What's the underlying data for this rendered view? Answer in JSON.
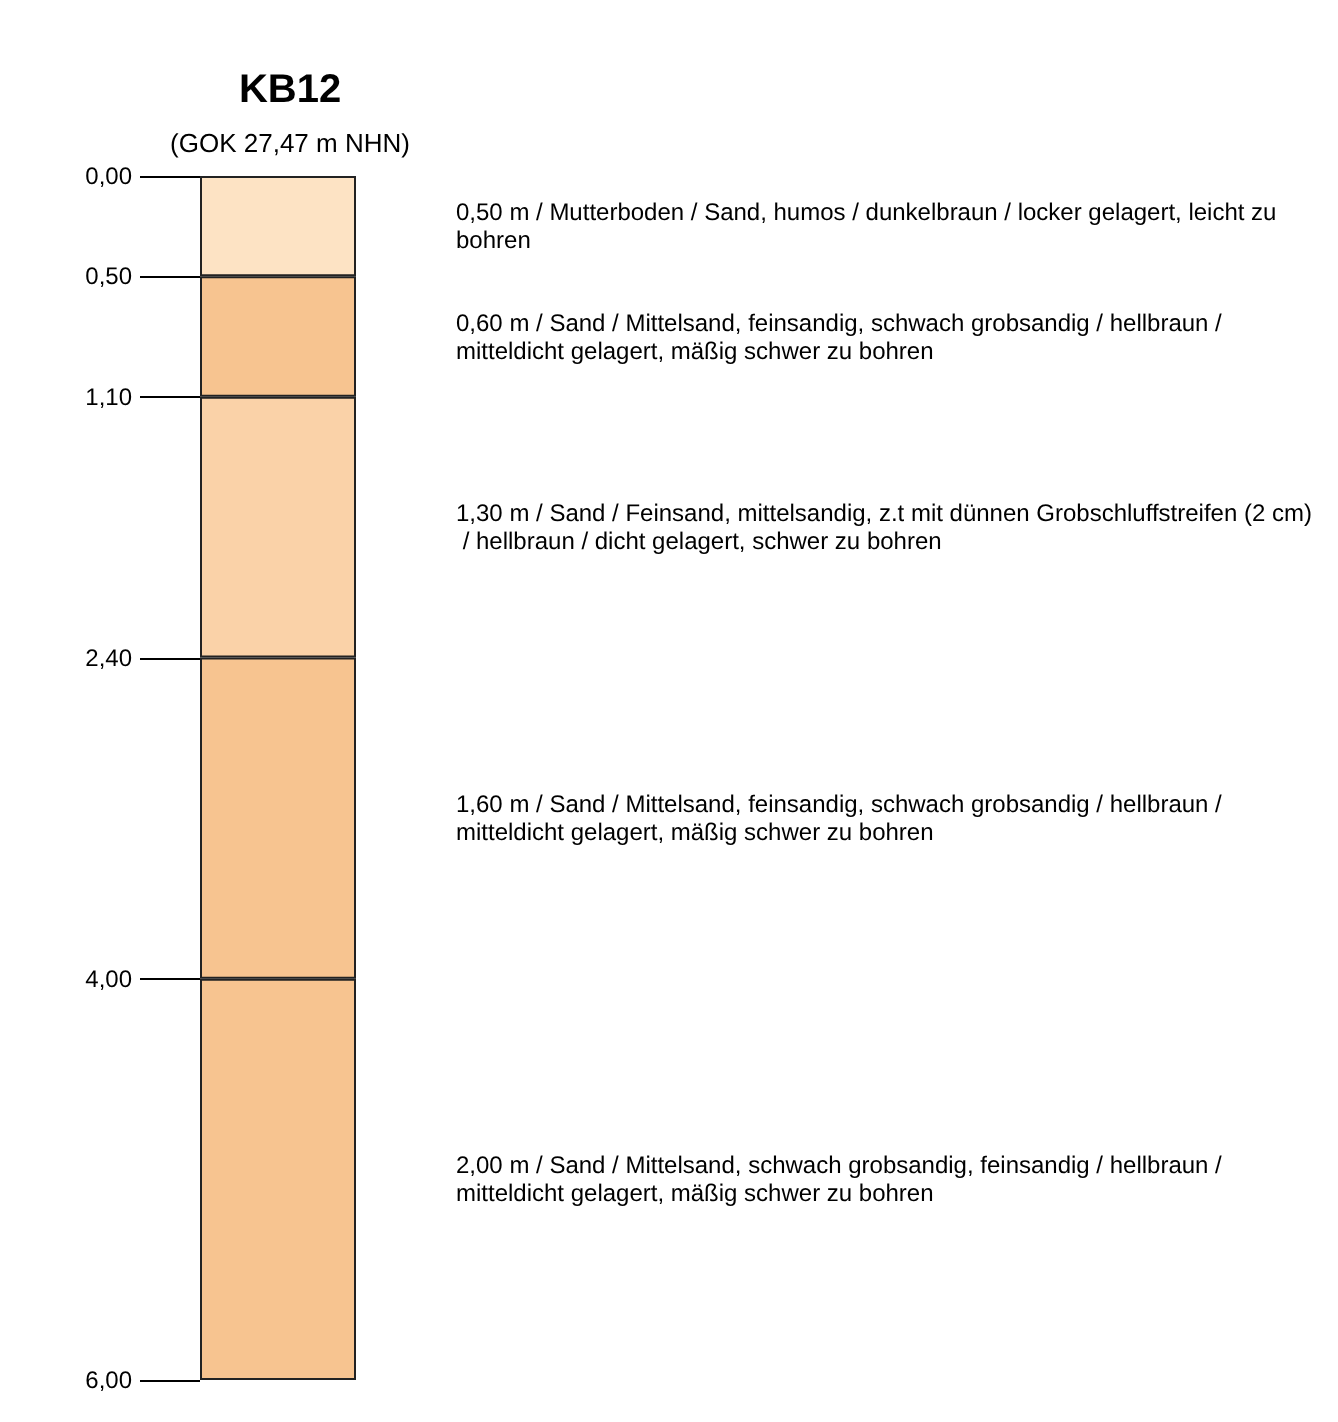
{
  "chart_data": {
    "type": "bar",
    "title": "KB12",
    "subtitle": "(GOK 27,47 m NHN)",
    "categories": [
      null
    ],
    "stacked": true,
    "series": [
      {
        "color": "#fde3c4",
        "values": [
          0.5
        ]
      },
      {
        "color": "#f7c490",
        "values": [
          0.6
        ]
      },
      {
        "color": "#fad2a8",
        "values": [
          1.3
        ]
      },
      {
        "color": "#f7c490",
        "values": [
          1.6
        ]
      },
      {
        "color": "#f7c490",
        "values": [
          2.0
        ]
      }
    ],
    "ylim": [
      6,
      0
    ],
    "yticks": [
      {
        "value": 0,
        "label": "0,00"
      },
      {
        "value": 0.5,
        "label": "0,50"
      },
      {
        "value": 1.1,
        "label": "1,10"
      },
      {
        "value": 2.4,
        "label": "2,40"
      },
      {
        "value": 4,
        "label": "4,00"
      },
      {
        "value": 6,
        "label": "6,00"
      }
    ],
    "grid": false,
    "annotations": [
      "0,50 m / Mutterboden / Sand, humos / dunkelbraun / locker gelagert, leicht zu bohren",
      "0,60 m / Sand / Mittelsand, feinsandig, schwach grobsandig / hellbraun / mitteldicht gelagert, mäßig schwer zu bohren",
      "1,30 m / Sand / Feinsand, mittelsandig, z.t mit dünnen Grobschluffstreifen (2 cm) / hellbraun / dicht gelagert, schwer zu bohren",
      "1,60 m / Sand / Mittelsand, feinsandig, schwach grobsandig / hellbraun / mitteldicht gelagert, mäßig schwer zu bohren",
      "2,00 m / Sand / Mittelsand, schwach grobsandig, feinsandig / hellbraun / mitteldicht gelagert, mäßig schwer zu bohren"
    ]
  }
}
